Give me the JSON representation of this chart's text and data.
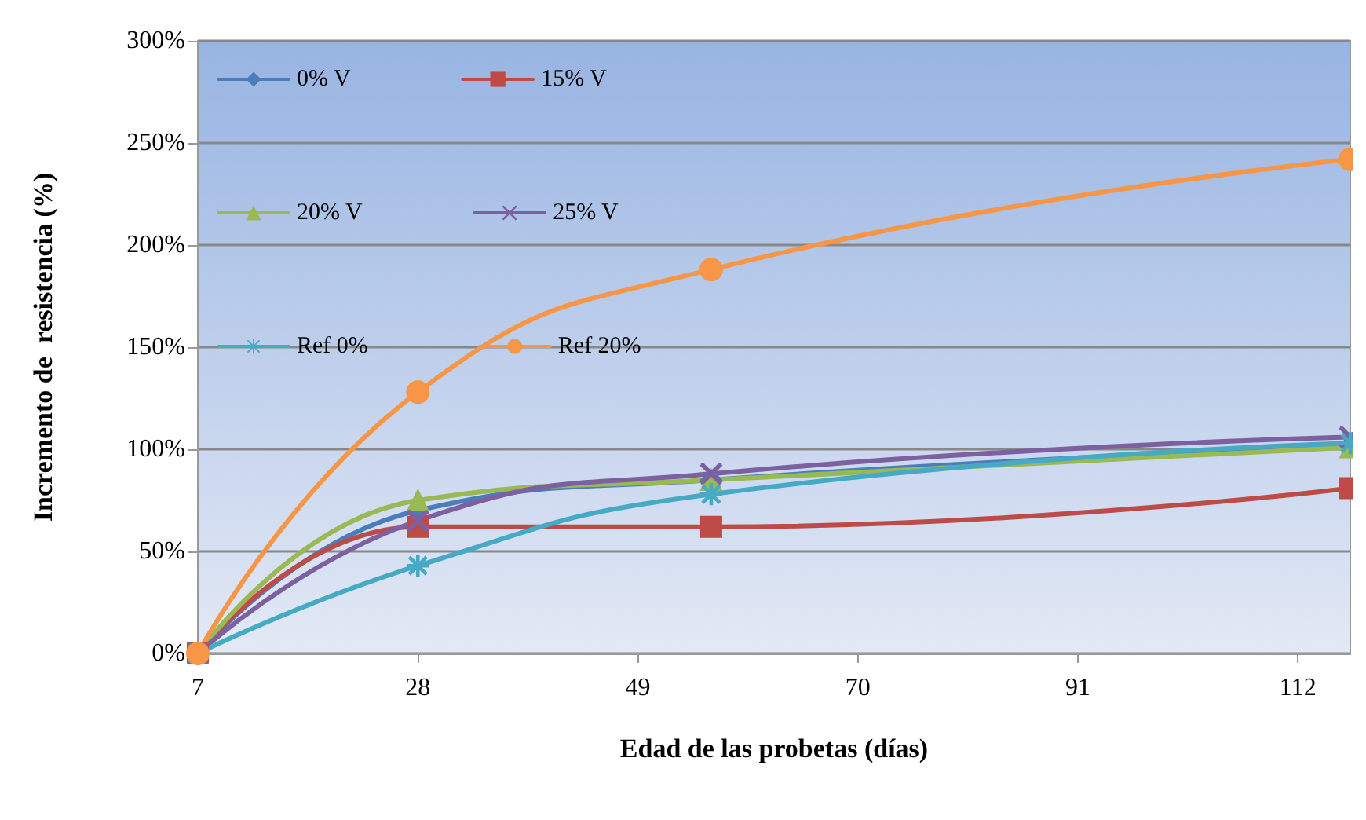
{
  "chart_data": {
    "type": "line",
    "xlabel": "Edad de las probetas (días)",
    "ylabel": "Incremento de  resistencia (%)",
    "xlim": [
      7,
      117
    ],
    "xticks": [
      7,
      28,
      49,
      70,
      91,
      112
    ],
    "ylim": [
      0,
      300
    ],
    "yticks": [
      {
        "value": 0,
        "label": "0%"
      },
      {
        "value": 50,
        "label": "50%"
      },
      {
        "value": 100,
        "label": "100%"
      },
      {
        "value": 150,
        "label": "150%"
      },
      {
        "value": 200,
        "label": "200%"
      },
      {
        "value": 250,
        "label": "250%"
      },
      {
        "value": 300,
        "label": "300%"
      }
    ],
    "x": [
      7,
      28,
      56,
      117
    ],
    "grid": "y",
    "legend": "top left",
    "line_style": "solid",
    "series": [
      {
        "name": "0% V",
        "color": "#4a7ebb",
        "marker": "diamond",
        "values": [
          0,
          70,
          85,
          102
        ]
      },
      {
        "name": "15% V",
        "color": "#be4b48",
        "marker": "square",
        "values": [
          0,
          62,
          62,
          81
        ]
      },
      {
        "name": "20% V",
        "color": "#98b954",
        "marker": "triangle",
        "values": [
          0,
          75,
          85,
          101
        ]
      },
      {
        "name": "25% V",
        "color": "#7d60a0",
        "marker": "cross",
        "values": [
          0,
          65,
          88,
          106
        ]
      },
      {
        "name": "Ref 0%",
        "color": "#46aac5",
        "marker": "star",
        "values": [
          0,
          43,
          78,
          103
        ]
      },
      {
        "name": "Ref 20%",
        "color": "#f79646",
        "marker": "circle",
        "values": [
          0,
          128,
          188,
          242
        ]
      }
    ]
  }
}
